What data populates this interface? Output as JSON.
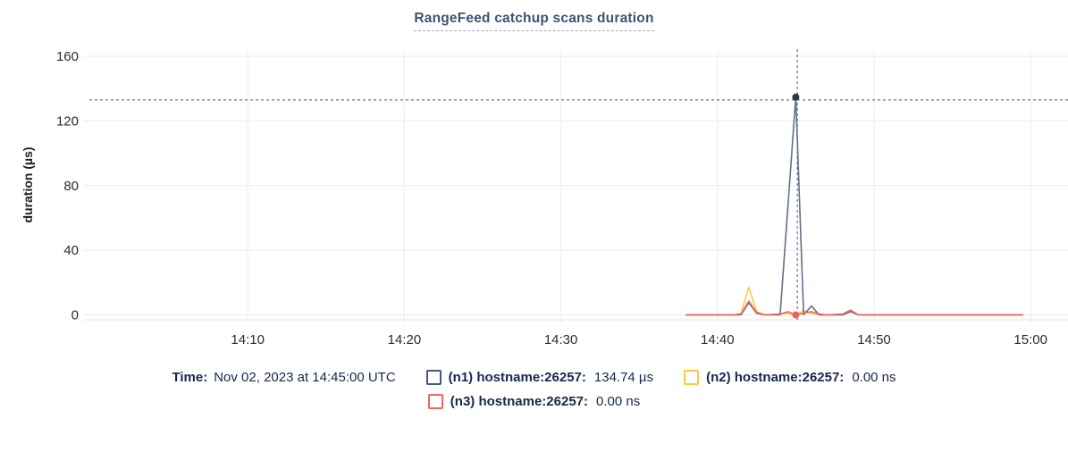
{
  "chart_data": {
    "type": "line",
    "title": "RangeFeed catchup scans duration",
    "ylabel": "duration (µs)",
    "x_axis": {
      "tick_labels": [
        "14:10",
        "14:20",
        "14:30",
        "14:40",
        "14:50",
        "15:00"
      ],
      "tick_minutes": [
        10,
        20,
        30,
        40,
        50,
        60
      ],
      "origin_time": "14:00"
    },
    "y_axis": {
      "tick_values": [
        0,
        40,
        80,
        120,
        160
      ],
      "min": 0,
      "max": 160
    },
    "grid": true,
    "legend_position": "bottom",
    "series": [
      {
        "id": "n2",
        "name": "(n2) hostname:26257",
        "color": "#ffc93d",
        "points": [
          [
            38,
            0
          ],
          [
            41,
            0
          ],
          [
            41.5,
            1
          ],
          [
            42,
            17
          ],
          [
            42.5,
            2
          ],
          [
            43,
            0
          ],
          [
            44,
            0.5
          ],
          [
            44.5,
            1
          ],
          [
            45,
            0
          ],
          [
            45.5,
            2.5
          ],
          [
            46,
            1
          ],
          [
            46.5,
            0
          ],
          [
            48,
            0
          ],
          [
            48.5,
            2.5
          ],
          [
            49,
            0
          ],
          [
            59.5,
            0
          ]
        ]
      },
      {
        "id": "n1",
        "name": "(n1) hostname:26257",
        "color": "#607189",
        "points": [
          [
            38,
            0
          ],
          [
            41.5,
            0
          ],
          [
            42,
            7.5
          ],
          [
            42.5,
            1
          ],
          [
            43,
            0
          ],
          [
            44,
            0
          ],
          [
            44.5,
            67
          ],
          [
            45,
            134.74
          ],
          [
            45.5,
            0
          ],
          [
            46,
            5.5
          ],
          [
            46.5,
            0
          ],
          [
            48,
            0
          ],
          [
            48.5,
            2
          ],
          [
            49,
            0
          ],
          [
            59.5,
            0
          ]
        ]
      },
      {
        "id": "n3",
        "name": "(n3) hostname:26257",
        "color": "#f2635f",
        "points": [
          [
            38,
            0
          ],
          [
            41,
            0
          ],
          [
            41.5,
            0.5
          ],
          [
            42,
            8.5
          ],
          [
            42.5,
            1.5
          ],
          [
            43,
            0
          ],
          [
            44,
            0.5
          ],
          [
            44.5,
            2
          ],
          [
            45,
            0
          ],
          [
            45.5,
            1
          ],
          [
            46,
            2
          ],
          [
            46.5,
            0.5
          ],
          [
            47,
            0
          ],
          [
            48,
            0.5
          ],
          [
            48.5,
            3
          ],
          [
            49,
            0
          ],
          [
            59.5,
            0
          ]
        ]
      }
    ],
    "crosshair": {
      "time_minute": 45.1,
      "value_line": 133
    },
    "markers": [
      {
        "minute": 45,
        "value": 134.74,
        "color": "#26374f"
      },
      {
        "minute": 45,
        "value": 0,
        "color": "#f2635f"
      }
    ]
  },
  "legend": {
    "time_label": "Time:",
    "time_value": "Nov 02, 2023 at 14:45:00 UTC",
    "entries": [
      {
        "id": "n1",
        "label": "(n1) hostname:26257:",
        "value": "134.74 µs",
        "swatch_color": "#475872"
      },
      {
        "id": "n2",
        "label": "(n2) hostname:26257:",
        "value": "0.00 ns",
        "swatch_color": "#ffc93d"
      },
      {
        "id": "n3",
        "label": "(n3) hostname:26257:",
        "value": "0.00 ns",
        "swatch_color": "#f2635f"
      }
    ]
  }
}
